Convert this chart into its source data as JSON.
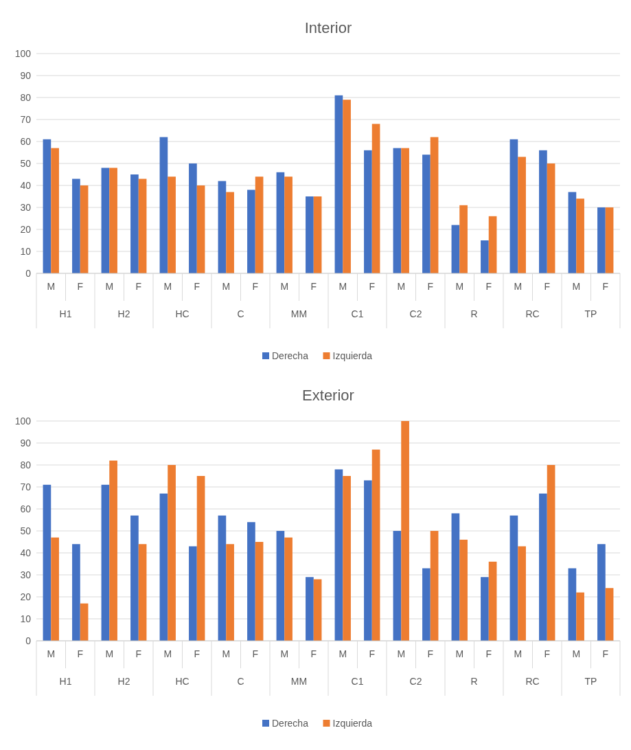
{
  "chart_data": [
    {
      "type": "bar",
      "title": "Interior",
      "categories": [
        "M",
        "F",
        "M",
        "F",
        "M",
        "F",
        "M",
        "F",
        "M",
        "F",
        "M",
        "F",
        "M",
        "F",
        "M",
        "F",
        "M",
        "F",
        "M",
        "F"
      ],
      "annotations": [
        "H1",
        "H2",
        "HC",
        "C",
        "MM",
        "C1",
        "C2",
        "R",
        "RC",
        "TP"
      ],
      "series": [
        {
          "name": "Derecha",
          "color": "#4472c4",
          "values": [
            61,
            43,
            48,
            45,
            62,
            50,
            42,
            38,
            46,
            35,
            81,
            56,
            57,
            54,
            22,
            15,
            61,
            56,
            37,
            30
          ]
        },
        {
          "name": "Izquierda",
          "color": "#ed7d31",
          "values": [
            57,
            40,
            48,
            43,
            44,
            40,
            37,
            44,
            44,
            35,
            79,
            68,
            57,
            62,
            31,
            26,
            53,
            50,
            34,
            30
          ]
        }
      ],
      "ylim": [
        0,
        100
      ],
      "yticks": [
        0,
        10,
        20,
        30,
        40,
        50,
        60,
        70,
        80,
        90,
        100
      ],
      "grid": "y",
      "legend": "bottom"
    },
    {
      "type": "bar",
      "title": "Exterior",
      "categories": [
        "M",
        "F",
        "M",
        "F",
        "M",
        "F",
        "M",
        "F",
        "M",
        "F",
        "M",
        "F",
        "M",
        "F",
        "M",
        "F",
        "M",
        "F",
        "M",
        "F"
      ],
      "annotations": [
        "H1",
        "H2",
        "HC",
        "C",
        "MM",
        "C1",
        "C2",
        "R",
        "RC",
        "TP"
      ],
      "series": [
        {
          "name": "Derecha",
          "color": "#4472c4",
          "values": [
            71,
            44,
            71,
            57,
            67,
            43,
            57,
            54,
            50,
            29,
            78,
            73,
            50,
            33,
            58,
            29,
            57,
            67,
            33,
            44
          ]
        },
        {
          "name": "Izquierda",
          "color": "#ed7d31",
          "values": [
            47,
            17,
            82,
            44,
            80,
            75,
            44,
            45,
            47,
            28,
            75,
            87,
            100,
            50,
            46,
            36,
            43,
            80,
            22,
            24
          ]
        }
      ],
      "ylim": [
        0,
        100
      ],
      "yticks": [
        0,
        10,
        20,
        30,
        40,
        50,
        60,
        70,
        80,
        90,
        100
      ],
      "grid": "y",
      "legend": "bottom"
    }
  ]
}
